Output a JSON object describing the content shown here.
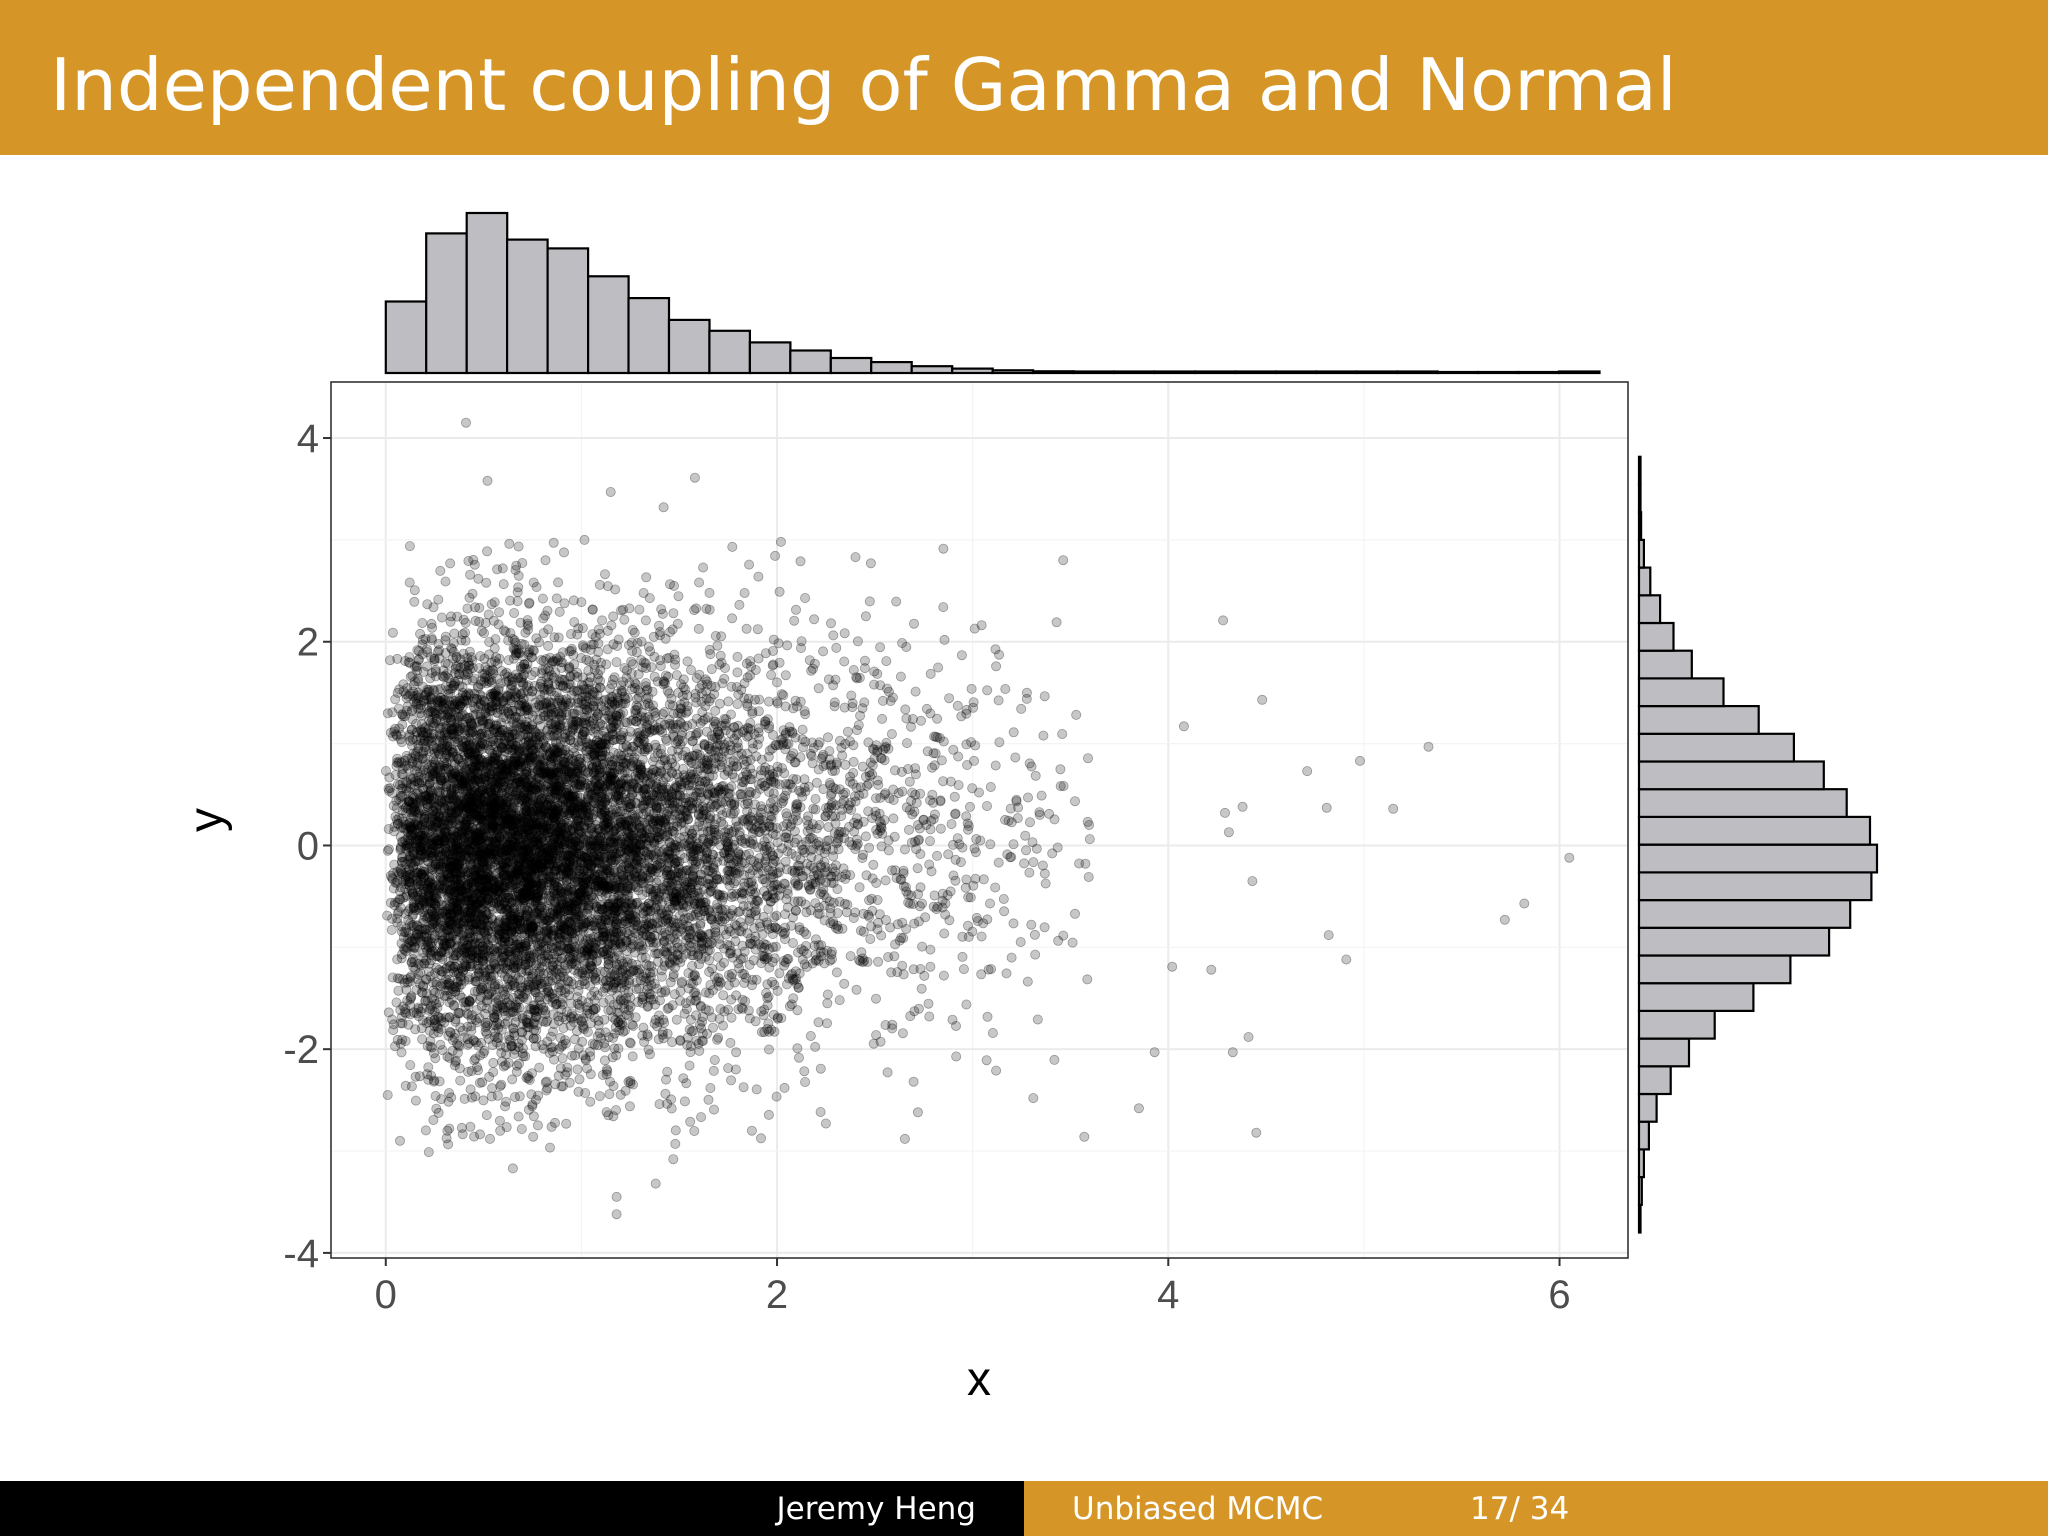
{
  "slide": {
    "title": "Independent coupling of Gamma and Normal",
    "accent_color": "#D69627",
    "footer": {
      "author": "Jeremy Heng",
      "talk_title": "Unbiased MCMC",
      "page": "17/ 34"
    }
  },
  "chart_data": {
    "type": "scatter",
    "title": "",
    "xlabel": "x",
    "ylabel": "y",
    "xlim": [
      -0.28,
      6.35
    ],
    "ylim": [
      -4.05,
      4.55
    ],
    "x_ticks": [
      "0",
      "2",
      "4",
      "6"
    ],
    "x_tick_values": [
      0,
      2,
      4,
      6
    ],
    "y_ticks": [
      "4",
      "2",
      "0",
      "-2",
      "-4"
    ],
    "y_tick_values": [
      4,
      2,
      0,
      -2,
      -4
    ],
    "grid": true,
    "point_color": "#000000",
    "point_opacity": 0.22,
    "marginal_fill": "#BEBDC1",
    "n_points_approx": 10000,
    "points_sample": [
      [
        0.41,
        4.15
      ],
      [
        0.52,
        3.58
      ],
      [
        1.58,
        3.61
      ],
      [
        1.15,
        3.47
      ],
      [
        1.42,
        3.32
      ],
      [
        2.02,
        2.98
      ],
      [
        2.48,
        2.77
      ],
      [
        2.12,
        2.79
      ],
      [
        2.85,
        2.34
      ],
      [
        4.28,
        2.21
      ],
      [
        4.48,
        1.43
      ],
      [
        4.08,
        1.17
      ],
      [
        5.33,
        0.97
      ],
      [
        4.98,
        0.83
      ],
      [
        4.71,
        0.73
      ],
      [
        4.38,
        0.38
      ],
      [
        5.15,
        0.36
      ],
      [
        4.81,
        0.37
      ],
      [
        4.29,
        0.32
      ],
      [
        4.31,
        0.13
      ],
      [
        6.05,
        -0.12
      ],
      [
        5.82,
        -0.57
      ],
      [
        5.72,
        -0.73
      ],
      [
        4.82,
        -0.88
      ],
      [
        4.91,
        -1.12
      ],
      [
        4.43,
        -0.35
      ],
      [
        4.02,
        -1.19
      ],
      [
        4.22,
        -1.22
      ],
      [
        4.41,
        -1.88
      ],
      [
        4.33,
        -2.03
      ],
      [
        3.93,
        -2.03
      ],
      [
        4.45,
        -2.82
      ],
      [
        3.85,
        -2.58
      ],
      [
        3.31,
        -2.48
      ],
      [
        3.12,
        -2.21
      ],
      [
        1.18,
        -3.45
      ],
      [
        1.18,
        -3.62
      ],
      [
        1.38,
        -3.32
      ],
      [
        1.47,
        -3.08
      ],
      [
        1.48,
        -2.93
      ],
      [
        0.65,
        -3.17
      ],
      [
        0.22,
        -3.01
      ],
      [
        2.25,
        -2.73
      ],
      [
        2.72,
        -2.62
      ],
      [
        0.01,
        -2.45
      ]
    ],
    "x_marginal": {
      "type": "histogram",
      "bin_start": 0.0,
      "bin_width": 0.2068,
      "counts": [
        1050,
        2050,
        2350,
        1960,
        1830,
        1420,
        1100,
        780,
        620,
        450,
        330,
        220,
        160,
        100,
        65,
        40,
        25,
        15,
        10,
        6,
        4,
        2,
        2,
        1,
        1,
        1,
        0,
        0,
        0,
        1
      ]
    },
    "y_marginal": {
      "type": "histogram",
      "bin_start": -3.8,
      "bin_width": 0.272,
      "counts": [
        4,
        8,
        14,
        28,
        50,
        90,
        142,
        215,
        325,
        430,
        540,
        600,
        660,
        676,
        656,
        590,
        525,
        440,
        340,
        240,
        150,
        98,
        60,
        32,
        14,
        6,
        3,
        1
      ]
    }
  }
}
